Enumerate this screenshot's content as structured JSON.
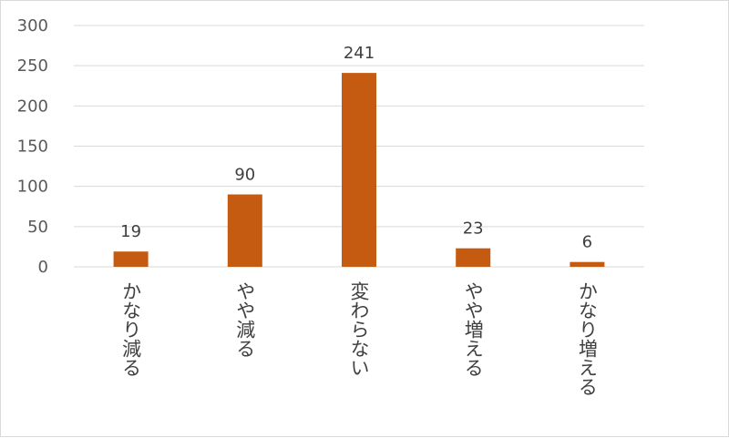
{
  "chart_data": {
    "type": "bar",
    "categories": [
      "かなり減る",
      "やや減る",
      "変わらない",
      "やや増える",
      "かなり増える"
    ],
    "values": [
      19,
      90,
      241,
      23,
      6
    ],
    "title": "",
    "xlabel": "",
    "ylabel": "",
    "ylim": [
      0,
      300
    ],
    "yticks": [
      0,
      50,
      100,
      150,
      200,
      250,
      300
    ],
    "grid": true,
    "legend": "none",
    "bar_color": "#c55a11",
    "gridline_color": "#d9d9d9",
    "category_label_orientation": "vertical"
  }
}
